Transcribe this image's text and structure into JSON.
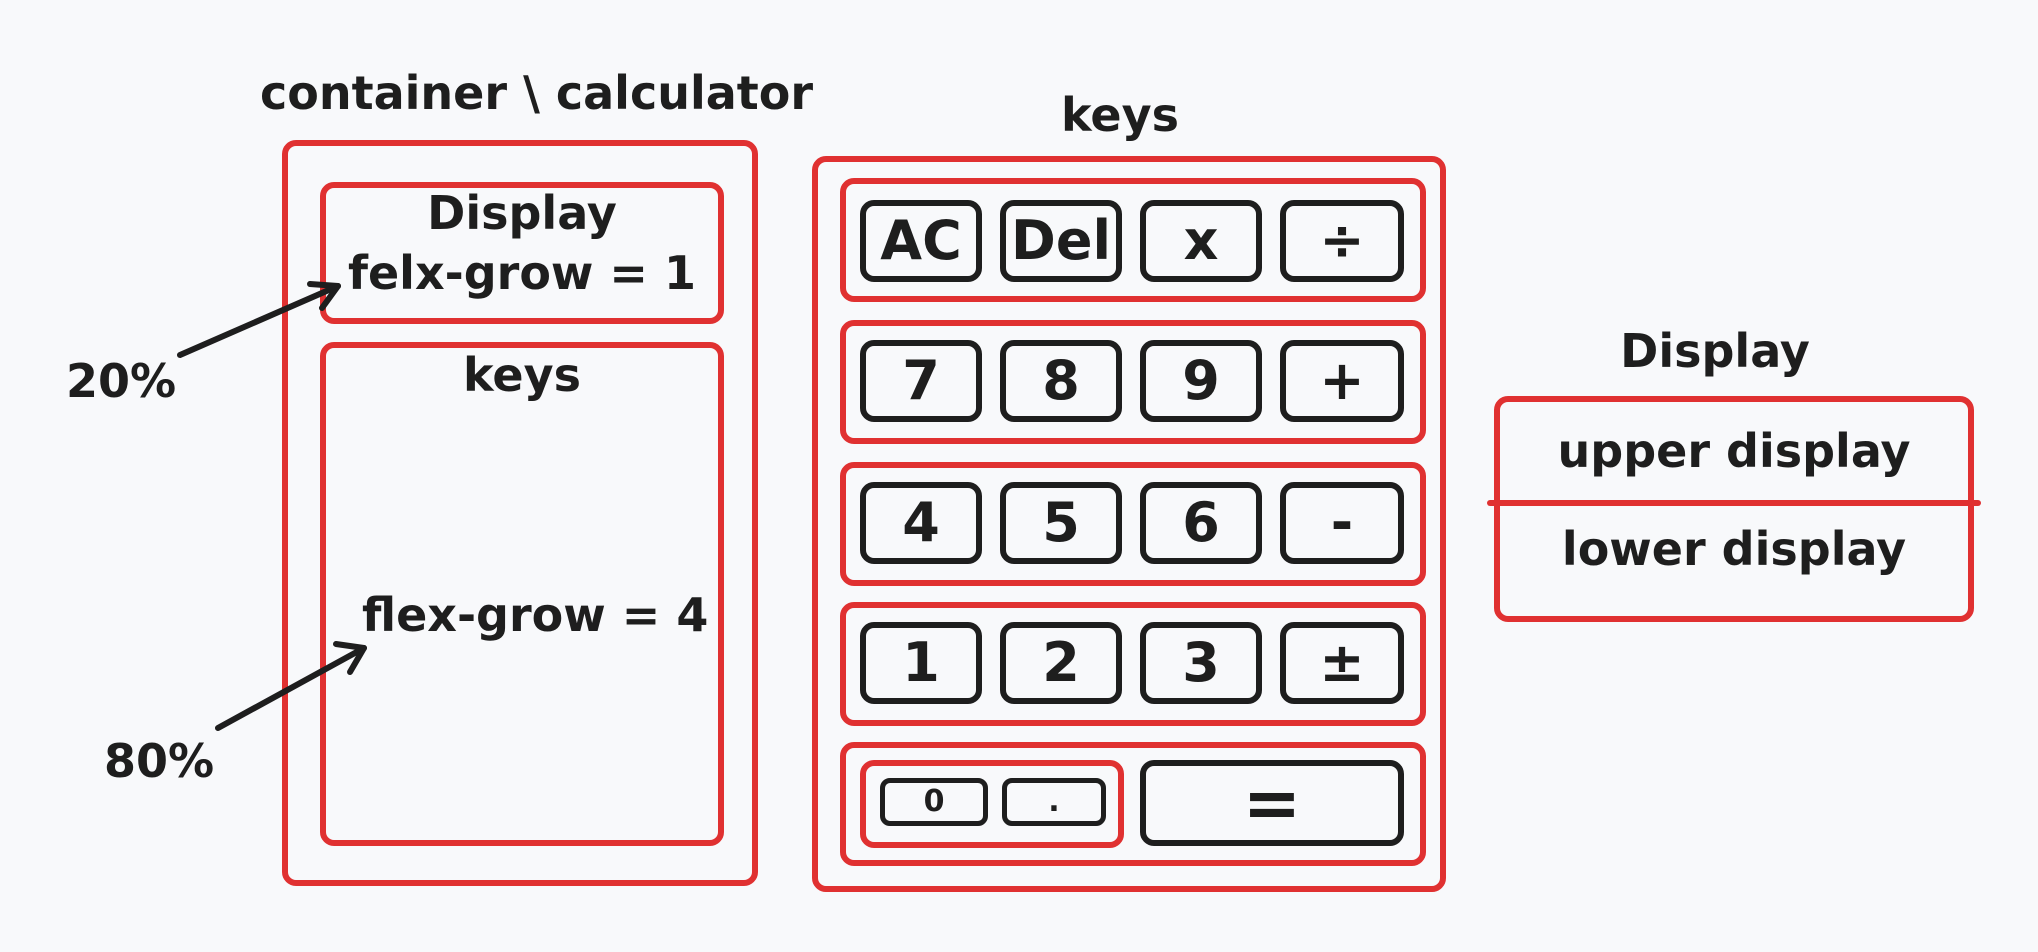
{
  "layout_diagram": {
    "title": "container \\ calculator",
    "display_label": "Display",
    "display_rule": "felx-grow = 1",
    "keys_label": "keys",
    "keys_rule": "flex-grow = 4",
    "display_percent": "20%",
    "keys_percent": "80%"
  },
  "keys_diagram": {
    "title": "keys",
    "rows": [
      [
        "AC",
        "Del",
        "x",
        "÷"
      ],
      [
        "7",
        "8",
        "9",
        "+"
      ],
      [
        "4",
        "5",
        "6",
        "-"
      ],
      [
        "1",
        "2",
        "3",
        "±"
      ]
    ],
    "bottom_row": {
      "zero": "0",
      "dot": ".",
      "equals": "="
    }
  },
  "display_diagram": {
    "title": "Display",
    "upper": "upper display",
    "lower": "lower display"
  },
  "colors": {
    "frame": "#e03131",
    "ink": "#1e1e1e",
    "background": "#f8f9fb"
  }
}
